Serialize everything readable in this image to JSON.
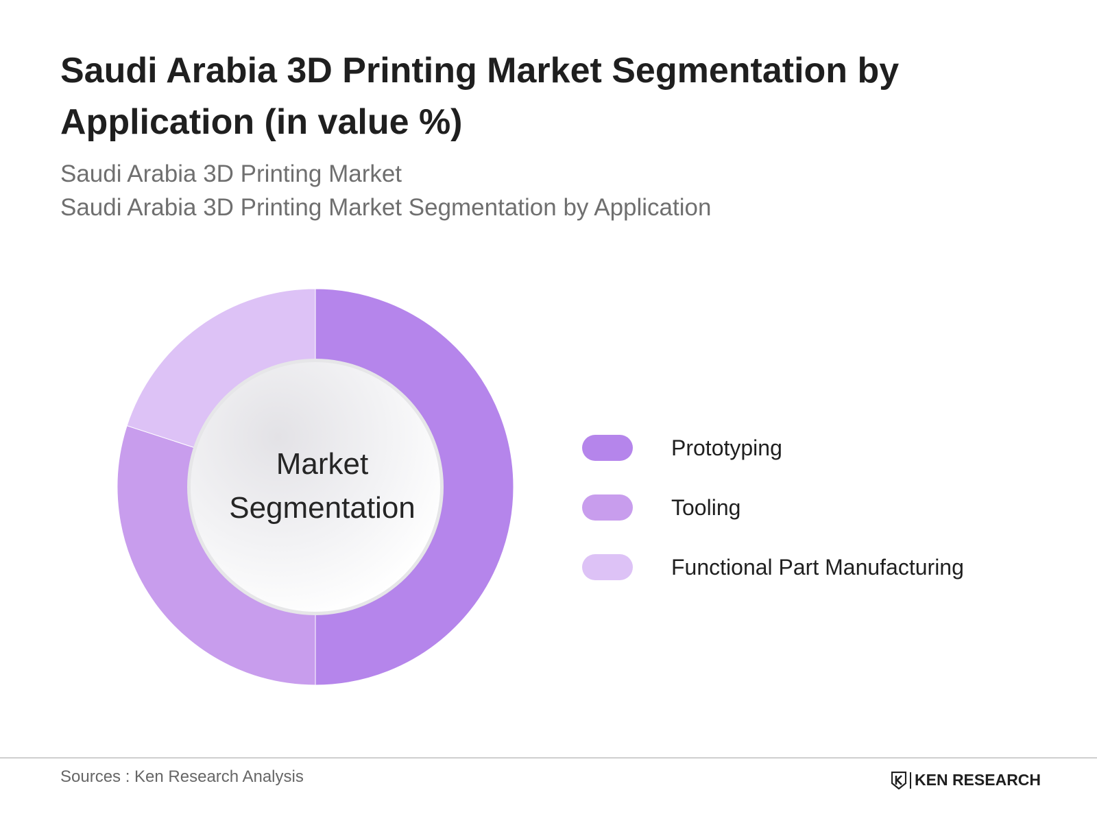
{
  "title": "Saudi Arabia 3D Printing Market Segmentation by Application (in value %)",
  "subtitles": [
    "Saudi Arabia 3D Printing Market",
    "Saudi Arabia 3D Printing Market Segmentation by Application"
  ],
  "center_label": [
    "Market",
    "Segmentation"
  ],
  "source": "Sources : Ken Research Analysis",
  "logo_text": "KEN RESEARCH",
  "chart_data": {
    "type": "pie",
    "variant": "donut",
    "categories": [
      "Prototyping",
      "Tooling",
      "Functional Part Manufacturing"
    ],
    "values": [
      50,
      30,
      20
    ],
    "colors": [
      "#b585eb",
      "#c89ded",
      "#ddc2f6"
    ],
    "legend_position": "right"
  }
}
